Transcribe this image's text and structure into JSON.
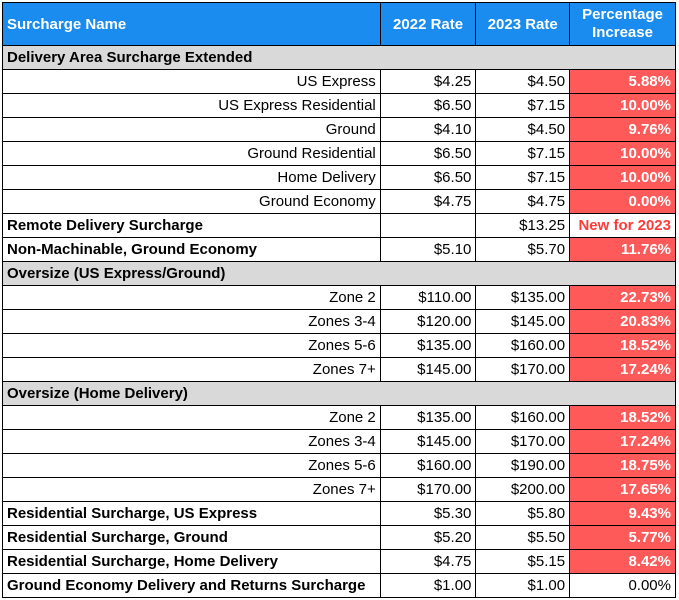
{
  "headers": {
    "name": "Surcharge Name",
    "rate2022": "2022 Rate",
    "rate2023": "2023 Rate",
    "pct_line1": "Percentage",
    "pct_line2": "Increase"
  },
  "rows": [
    {
      "kind": "section",
      "name": "Delivery Area Surcharge Extended"
    },
    {
      "kind": "sub",
      "name": "US Express",
      "r22": "$4.25",
      "r23": "$4.50",
      "pct": "5.88%",
      "hl": true
    },
    {
      "kind": "sub",
      "name": "US Express Residential",
      "r22": "$6.50",
      "r23": "$7.15",
      "pct": "10.00%",
      "hl": true
    },
    {
      "kind": "sub",
      "name": "Ground",
      "r22": "$4.10",
      "r23": "$4.50",
      "pct": "9.76%",
      "hl": true
    },
    {
      "kind": "sub",
      "name": "Ground Residential",
      "r22": "$6.50",
      "r23": "$7.15",
      "pct": "10.00%",
      "hl": true
    },
    {
      "kind": "sub",
      "name": "Home Delivery",
      "r22": "$6.50",
      "r23": "$7.15",
      "pct": "10.00%",
      "hl": true
    },
    {
      "kind": "sub",
      "name": "Ground Economy",
      "r22": "$4.75",
      "r23": "$4.75",
      "pct": "0.00%",
      "hl": true
    },
    {
      "kind": "main",
      "name": "Remote Delivery Surcharge",
      "r22": "",
      "r23": "$13.25",
      "pct": "New for 2023",
      "hl": false,
      "newtext": true
    },
    {
      "kind": "main",
      "name": "Non-Machinable, Ground Economy",
      "r22": "$5.10",
      "r23": "$5.70",
      "pct": "11.76%",
      "hl": true
    },
    {
      "kind": "section",
      "name": "Oversize (US Express/Ground)"
    },
    {
      "kind": "sub",
      "name": "Zone 2",
      "r22": "$110.00",
      "r23": "$135.00",
      "pct": "22.73%",
      "hl": true
    },
    {
      "kind": "sub",
      "name": "Zones 3-4",
      "r22": "$120.00",
      "r23": "$145.00",
      "pct": "20.83%",
      "hl": true
    },
    {
      "kind": "sub",
      "name": "Zones 5-6",
      "r22": "$135.00",
      "r23": "$160.00",
      "pct": "18.52%",
      "hl": true
    },
    {
      "kind": "sub",
      "name": "Zones 7+",
      "r22": "$145.00",
      "r23": "$170.00",
      "pct": "17.24%",
      "hl": true
    },
    {
      "kind": "section",
      "name": "Oversize (Home Delivery)"
    },
    {
      "kind": "sub",
      "name": "Zone 2",
      "r22": "$135.00",
      "r23": "$160.00",
      "pct": "18.52%",
      "hl": true
    },
    {
      "kind": "sub",
      "name": "Zones 3-4",
      "r22": "$145.00",
      "r23": "$170.00",
      "pct": "17.24%",
      "hl": true
    },
    {
      "kind": "sub",
      "name": "Zones 5-6",
      "r22": "$160.00",
      "r23": "$190.00",
      "pct": "18.75%",
      "hl": true
    },
    {
      "kind": "sub",
      "name": "Zones 7+",
      "r22": "$170.00",
      "r23": "$200.00",
      "pct": "17.65%",
      "hl": true
    },
    {
      "kind": "main",
      "name": "Residential Surcharge, US Express",
      "r22": "$5.30",
      "r23": "$5.80",
      "pct": "9.43%",
      "hl": true
    },
    {
      "kind": "main",
      "name": "Residential Surcharge, Ground",
      "r22": "$5.20",
      "r23": "$5.50",
      "pct": "5.77%",
      "hl": true
    },
    {
      "kind": "main",
      "name": "Residential Surcharge, Home Delivery",
      "r22": "$4.75",
      "r23": "$5.15",
      "pct": "8.42%",
      "hl": true
    },
    {
      "kind": "main",
      "name": "Ground Economy Delivery and Returns Surcharge",
      "r22": "$1.00",
      "r23": "$1.00",
      "pct": "0.00%",
      "hl": false
    }
  ],
  "colors": {
    "header_bg": "#1a8cf0",
    "section_bg": "#d9d9d9",
    "highlight_bg": "#ff5a5a",
    "new_text": "#ff3b3b"
  }
}
